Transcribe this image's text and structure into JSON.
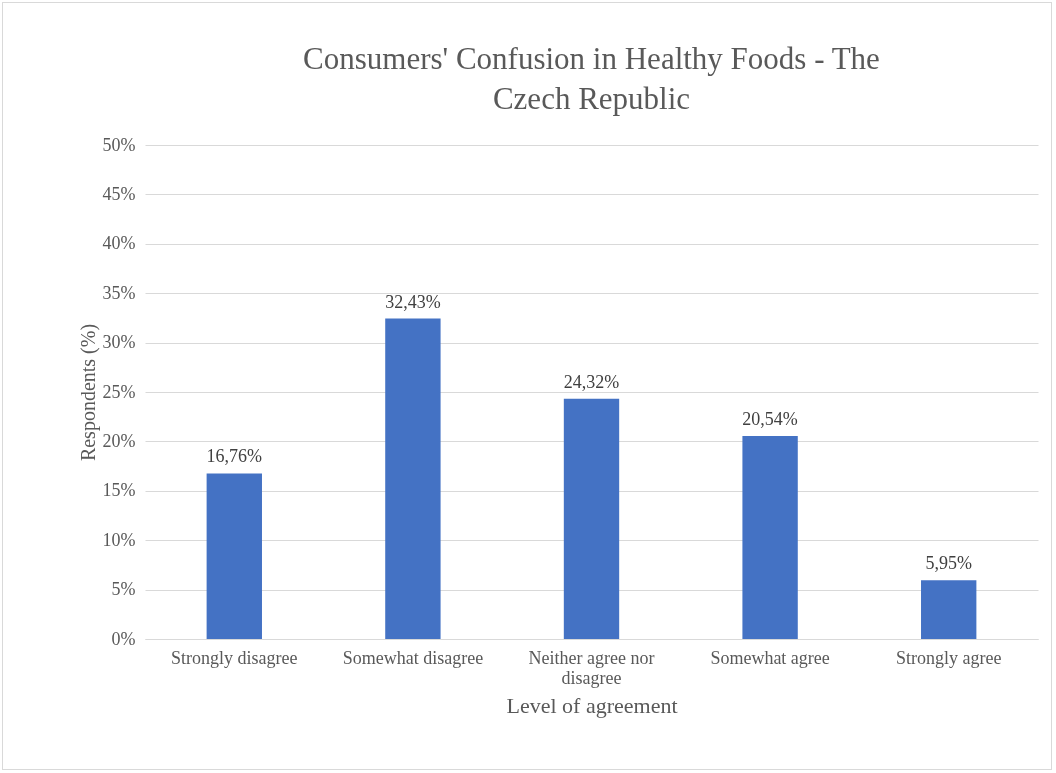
{
  "chart_data": {
    "type": "bar",
    "title": "Consumers' Confusion in Healthy Foods - The Czech Republic",
    "xlabel": "Level of agreement",
    "ylabel": "Respondents (%)",
    "categories": [
      "Strongly disagree",
      "Somewhat disagree",
      "Neither agree nor disagree",
      "Somewhat agree",
      "Strongly agree"
    ],
    "values": [
      16.76,
      32.43,
      24.32,
      20.54,
      5.95
    ],
    "value_labels": [
      "16,76%",
      "32,43%",
      "24,32%",
      "20,54%",
      "5,95%"
    ],
    "color": "#4472c4",
    "ylim": [
      0,
      50
    ],
    "yticks": [
      {
        "value": 0,
        "label": "0%"
      },
      {
        "value": 5,
        "label": "5%"
      },
      {
        "value": 10,
        "label": "10%"
      },
      {
        "value": 15,
        "label": "15%"
      },
      {
        "value": 20,
        "label": "20%"
      },
      {
        "value": 25,
        "label": "25%"
      },
      {
        "value": 30,
        "label": "30%"
      },
      {
        "value": 35,
        "label": "35%"
      },
      {
        "value": 40,
        "label": "40%"
      },
      {
        "value": 45,
        "label": "45%"
      },
      {
        "value": 50,
        "label": "50%"
      }
    ],
    "grid": "y"
  }
}
